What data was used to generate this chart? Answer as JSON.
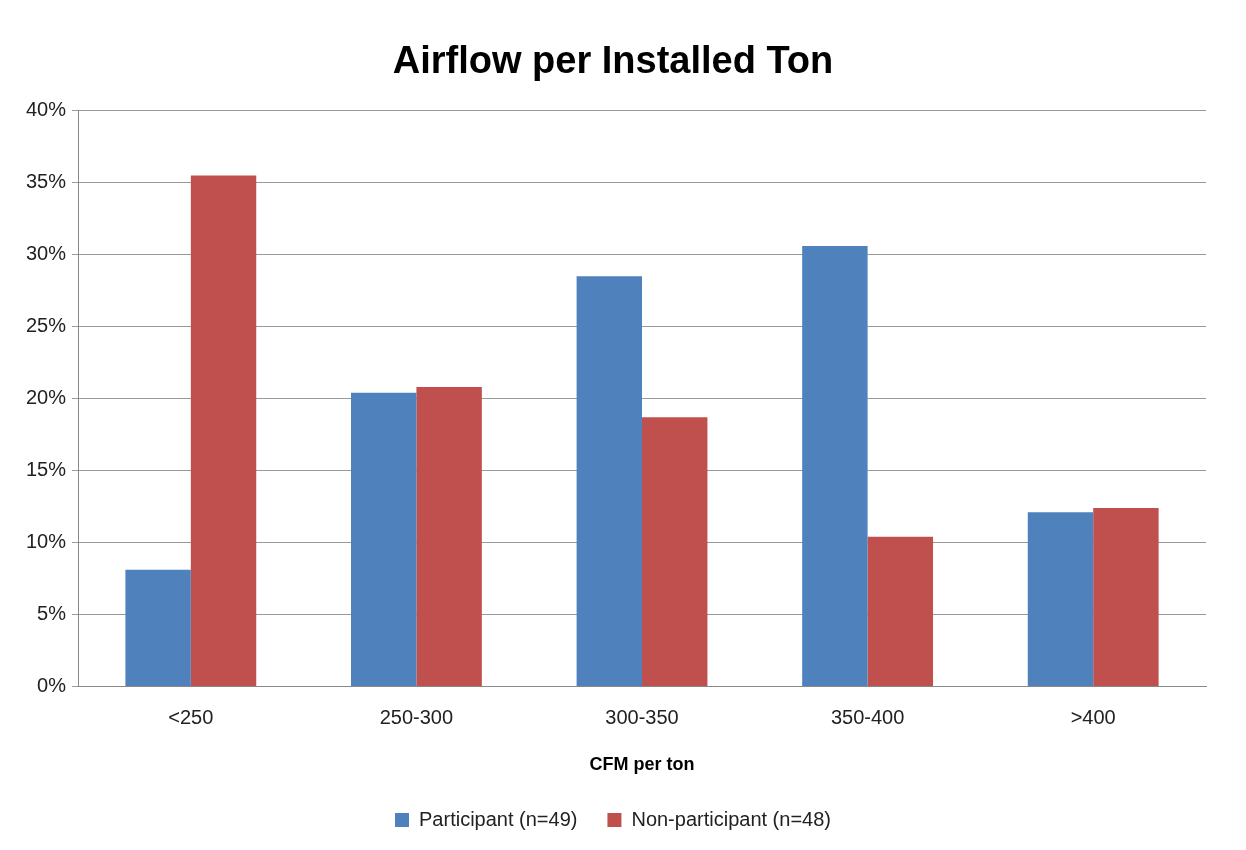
{
  "chart_data": {
    "type": "bar",
    "title": "Airflow per Installed Ton",
    "xlabel": "CFM per ton",
    "categories": [
      "<250",
      "250-300",
      "300-350",
      "350-400",
      ">400"
    ],
    "series": [
      {
        "name": "Participant (n=49)",
        "color": "#4f81bd",
        "values": [
          8.1,
          20.4,
          28.5,
          30.6,
          12.1
        ]
      },
      {
        "name": "Non-participant (n=48)",
        "color": "#c0504d",
        "values": [
          35.5,
          20.8,
          18.7,
          10.4,
          12.4
        ]
      }
    ],
    "ylim": [
      0,
      40
    ],
    "yticks": [
      {
        "value": 0,
        "label": "0%"
      },
      {
        "value": 5,
        "label": "5%"
      },
      {
        "value": 10,
        "label": "10%"
      },
      {
        "value": 15,
        "label": "15%"
      },
      {
        "value": 20,
        "label": "20%"
      },
      {
        "value": 25,
        "label": "25%"
      },
      {
        "value": 30,
        "label": "30%"
      },
      {
        "value": 35,
        "label": "35%"
      },
      {
        "value": 40,
        "label": "40%"
      }
    ],
    "grid": "y",
    "legend": "bottom"
  }
}
